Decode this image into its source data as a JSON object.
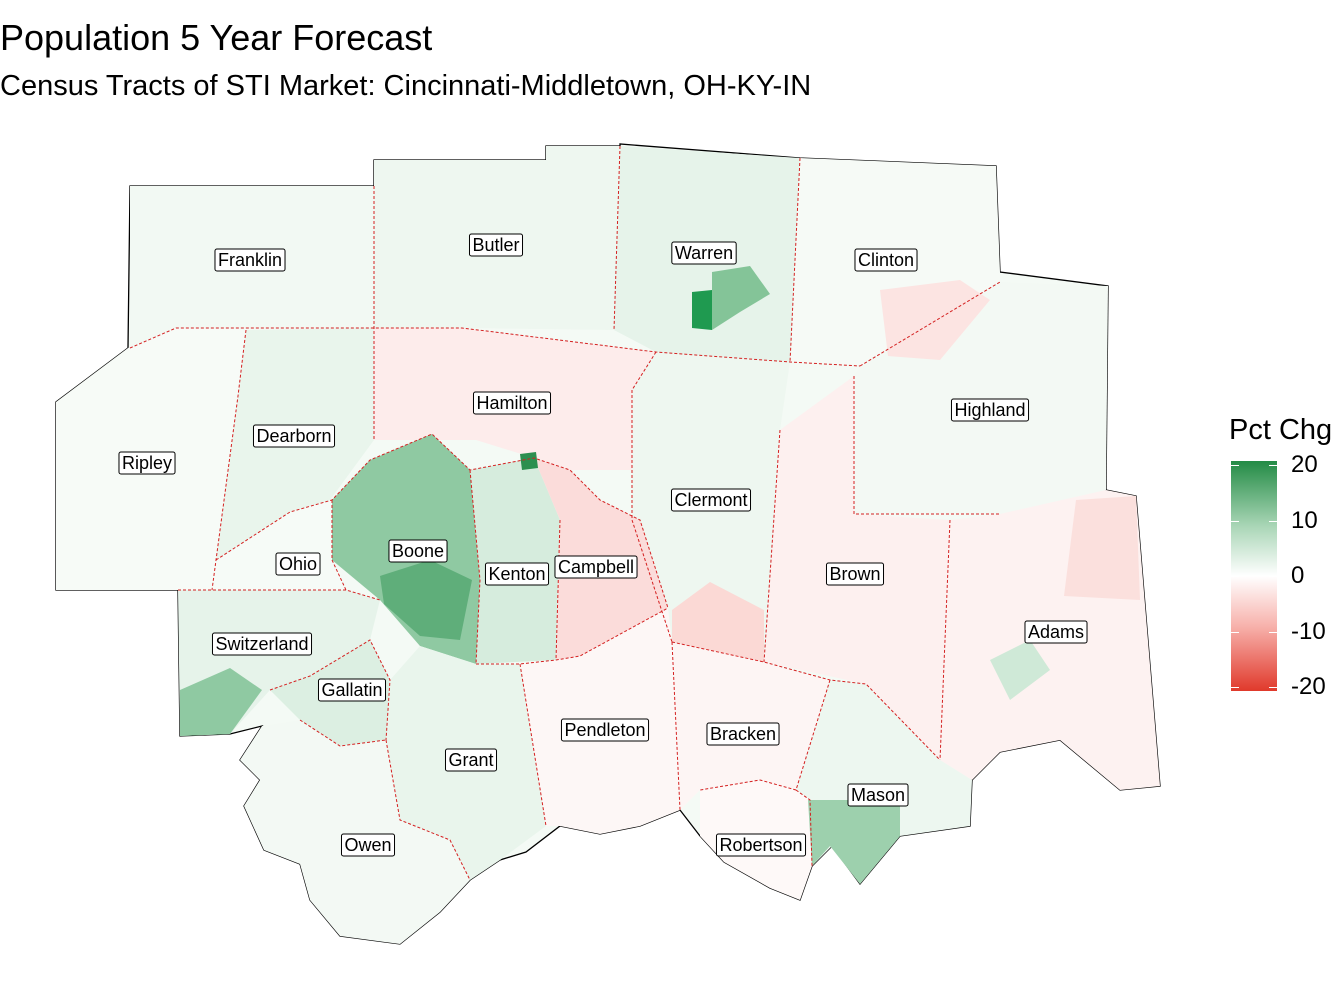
{
  "title": "Population 5 Year Forecast",
  "subtitle": "Census Tracts of STI Market: Cincinnati-Middletown, OH-KY-IN",
  "legend": {
    "title": "Pct Chg",
    "ticks": [
      "20",
      "10",
      "0",
      "-10",
      "-20"
    ],
    "range": [
      -20,
      20
    ],
    "colors": {
      "high": "#238b45",
      "mid": "#ffffff",
      "low": "#e0392b"
    }
  },
  "map": {
    "border_color": "#d42020",
    "counties": [
      {
        "name": "Franklin",
        "fill": "#f2f9f3"
      },
      {
        "name": "Butler",
        "fill": "#eef7f0"
      },
      {
        "name": "Warren",
        "fill": "#e6f3ea"
      },
      {
        "name": "Clinton",
        "fill": "#f6faf6"
      },
      {
        "name": "Hamilton",
        "fill": "#fdeceb"
      },
      {
        "name": "Highland",
        "fill": "#f3f9f4"
      },
      {
        "name": "Dearborn",
        "fill": "#e9f5ec"
      },
      {
        "name": "Ripley",
        "fill": "#f7fbf7"
      },
      {
        "name": "Clermont",
        "fill": "#eef7f0"
      },
      {
        "name": "Boone",
        "fill": "#8fc9a2"
      },
      {
        "name": "Ohio",
        "fill": "#f6fbf7"
      },
      {
        "name": "Kenton",
        "fill": "#d6ecdd"
      },
      {
        "name": "Campbell",
        "fill": "#fbdcda"
      },
      {
        "name": "Brown",
        "fill": "#fdf0ef"
      },
      {
        "name": "Adams",
        "fill": "#fdf2f1"
      },
      {
        "name": "Switzerland",
        "fill": "#e6f3ea"
      },
      {
        "name": "Gallatin",
        "fill": "#dcefe2"
      },
      {
        "name": "Grant",
        "fill": "#e9f5ec"
      },
      {
        "name": "Pendleton",
        "fill": "#fdf7f6"
      },
      {
        "name": "Bracken",
        "fill": "#fdf5f4"
      },
      {
        "name": "Mason",
        "fill": "#edf7f0"
      },
      {
        "name": "Robertson",
        "fill": "#fef9f8"
      },
      {
        "name": "Owen",
        "fill": "#f3f9f4"
      }
    ]
  }
}
